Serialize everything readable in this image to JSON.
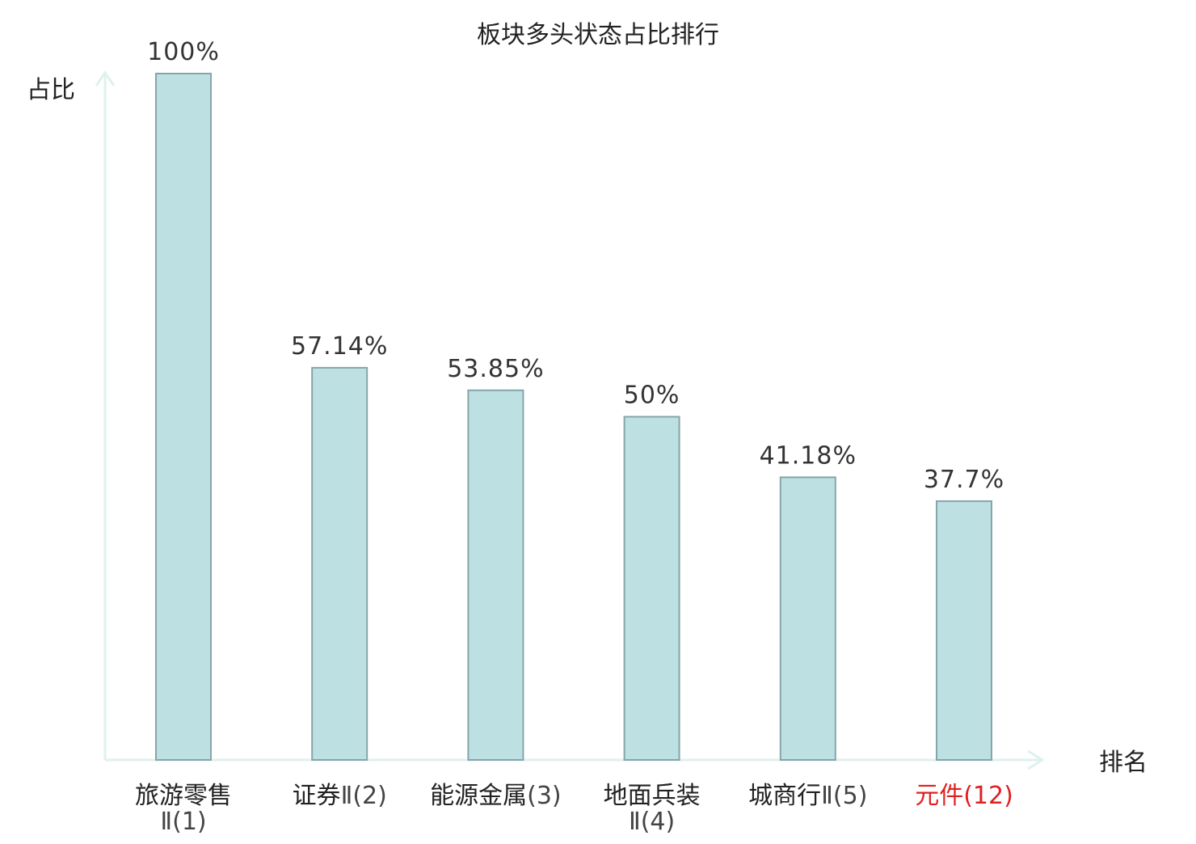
{
  "chart_data": {
    "type": "bar",
    "title": "板块多头状态占比排行",
    "ylabel": "占比",
    "xlabel": "排名",
    "ylim": [
      0,
      100
    ],
    "grid": false,
    "categories": [
      {
        "name": "旅游零售",
        "line2": "Ⅱ",
        "rank": "(1)",
        "highlight": false
      },
      {
        "name": "证券",
        "line2": "",
        "rank": "Ⅱ(2)",
        "highlight": false
      },
      {
        "name": "能源金属",
        "line2": "",
        "rank": "(3)",
        "highlight": false
      },
      {
        "name": "地面兵装",
        "line2": "Ⅱ",
        "rank": "(4)",
        "highlight": false
      },
      {
        "name": "城商行",
        "line2": "",
        "rank": "Ⅱ(5)",
        "highlight": false
      },
      {
        "name": "元件",
        "line2": "",
        "rank": "(12)",
        "highlight": true
      }
    ],
    "values": [
      100,
      57.14,
      53.85,
      50,
      41.18,
      37.7
    ],
    "value_labels": [
      "100%",
      "57.14%",
      "53.85%",
      "50%",
      "41.18%",
      "37.7%"
    ]
  },
  "colors": {
    "bar_fill": "#bde0e2",
    "bar_stroke": "#86a5a8",
    "axis": "#dff1ee",
    "text": "#222222",
    "rank_text": "#444444",
    "highlight": "#e02020"
  }
}
